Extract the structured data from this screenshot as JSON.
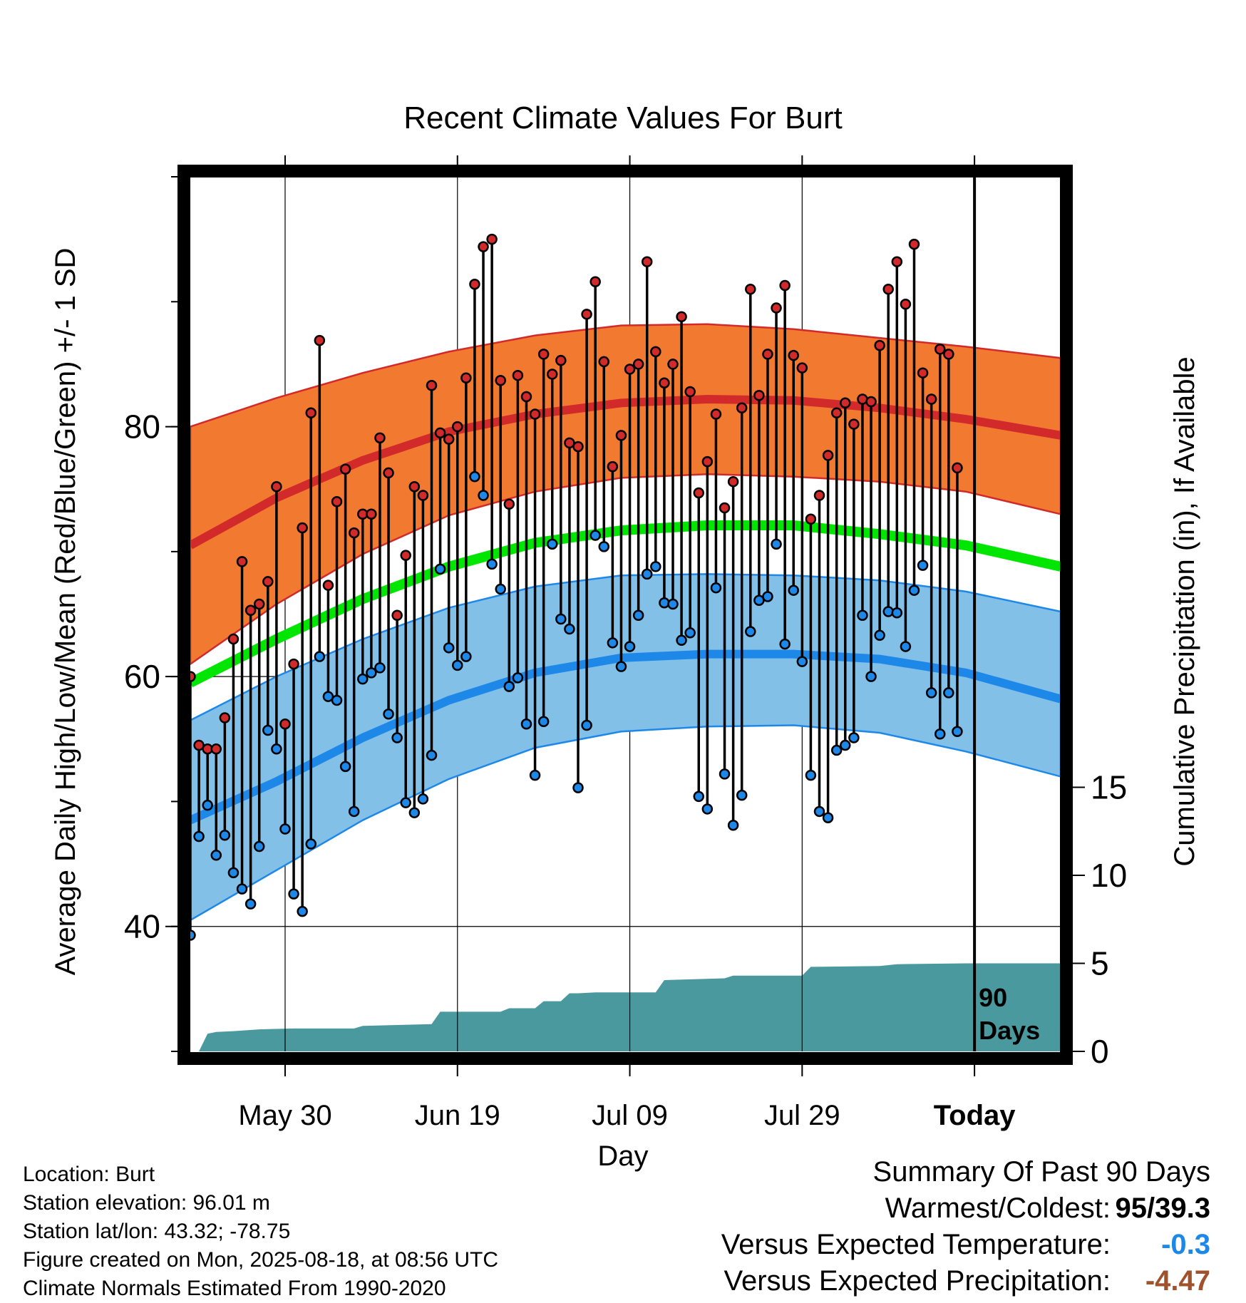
{
  "chart_data": {
    "type": "line",
    "title": "Recent Climate Values For Burt",
    "xlabel": "Day",
    "ylabel": "Average Daily High/Low/Mean (Red/Blue/Green) +/- 1 SD",
    "y2label": "Cumulative Precipitation (in), If Available",
    "ylim": [
      30,
      100
    ],
    "y_ticks": [
      40,
      60,
      80
    ],
    "y2_ticks": [
      0,
      5,
      10,
      15
    ],
    "x_tick_labels": [
      "May 30",
      "Jun 19",
      "Jul 09",
      "Jul 29",
      "Today"
    ],
    "x_tick_days": [
      11,
      31,
      51,
      71,
      91
    ],
    "xlim": [
      0,
      101
    ],
    "today_marker": "90\nDays",
    "grid": true,
    "colors": {
      "high": "#d22a2a",
      "high_band": "#f27a30",
      "low": "#1e88e8",
      "low_band": "#82c0e8",
      "mean": "#00e600",
      "precip": "#4a999f"
    },
    "normals": {
      "day": [
        0,
        10,
        20,
        30,
        40,
        50,
        60,
        70,
        80,
        90,
        101
      ],
      "high_mean": [
        70.5,
        74.3,
        77.3,
        79.6,
        81.0,
        81.9,
        82.2,
        82.1,
        81.5,
        80.6,
        79.3
      ],
      "high_upper": [
        80.0,
        82.3,
        84.3,
        86.0,
        87.3,
        88.1,
        88.2,
        87.8,
        87.1,
        86.4,
        85.5
      ],
      "high_lower": [
        61.0,
        65.8,
        69.8,
        72.9,
        74.8,
        75.9,
        76.2,
        76.0,
        75.6,
        74.8,
        73.0
      ],
      "low_mean": [
        48.5,
        51.6,
        55.1,
        58.1,
        60.3,
        61.5,
        61.8,
        61.8,
        61.4,
        60.3,
        58.2
      ],
      "low_upper": [
        56.5,
        60.0,
        63.0,
        65.5,
        67.2,
        68.1,
        68.2,
        68.1,
        67.7,
        66.8,
        65.2
      ],
      "low_lower": [
        40.5,
        44.5,
        48.5,
        51.8,
        54.3,
        55.6,
        56.0,
        56.1,
        55.5,
        54.0,
        52.0
      ],
      "mean": [
        59.5,
        63.0,
        66.2,
        68.8,
        70.7,
        71.7,
        72.1,
        72.1,
        71.4,
        70.5,
        68.8
      ]
    },
    "daily": {
      "day": [
        0,
        1,
        2,
        3,
        4,
        5,
        6,
        7,
        8,
        9,
        10,
        11,
        12,
        13,
        14,
        15,
        16,
        17,
        18,
        19,
        20,
        21,
        22,
        23,
        24,
        25,
        26,
        27,
        28,
        29,
        30,
        31,
        32,
        33,
        34,
        35,
        36,
        37,
        38,
        39,
        40,
        41,
        42,
        43,
        44,
        45,
        46,
        47,
        48,
        49,
        50,
        51,
        52,
        53,
        54,
        55,
        56,
        57,
        58,
        59,
        60,
        61,
        62,
        63,
        64,
        65,
        66,
        67,
        68,
        69,
        70,
        71,
        72,
        73,
        74,
        75,
        76,
        77,
        78,
        79,
        80,
        81,
        82,
        83,
        84,
        85,
        86,
        87,
        88,
        89,
        90
      ],
      "high": [
        60.0,
        54.5,
        54.2,
        54.2,
        56.7,
        63.0,
        69.2,
        65.3,
        65.8,
        67.6,
        75.2,
        56.2,
        61.0,
        71.9,
        81.1,
        86.9,
        67.3,
        74.0,
        76.6,
        71.5,
        73.0,
        73.0,
        79.1,
        76.3,
        64.9,
        69.7,
        75.2,
        74.5,
        83.3,
        79.5,
        79.0,
        80.0,
        83.9,
        91.4,
        94.4,
        95.0,
        83.7,
        73.8,
        84.1,
        82.4,
        81.0,
        85.8,
        84.2,
        85.3,
        78.7,
        78.4,
        89.0,
        91.6,
        85.2,
        76.8,
        79.3,
        84.6,
        85.0,
        93.2,
        86.0,
        83.5,
        85.0,
        88.8,
        82.8,
        74.7,
        77.2,
        81.0,
        73.5,
        75.6,
        81.5,
        91.0,
        82.5,
        85.8,
        89.5,
        91.3,
        85.7,
        84.7,
        72.6,
        74.5,
        77.7,
        81.1,
        81.9,
        80.2,
        82.2,
        82.0,
        86.5,
        91.0,
        93.2,
        89.8,
        94.6,
        84.3,
        82.2,
        86.2,
        85.8,
        76.7,
        null
      ],
      "low": [
        39.3,
        47.2,
        49.7,
        45.7,
        47.3,
        44.3,
        43.0,
        41.8,
        46.4,
        55.7,
        54.2,
        47.8,
        42.6,
        41.2,
        46.6,
        61.6,
        58.4,
        58.1,
        52.8,
        49.2,
        59.8,
        60.3,
        60.7,
        57.0,
        55.1,
        49.9,
        49.1,
        50.2,
        53.7,
        68.6,
        62.3,
        60.9,
        61.6,
        76.0,
        74.5,
        69.0,
        67.0,
        59.2,
        59.9,
        56.2,
        52.1,
        56.4,
        70.6,
        64.6,
        63.8,
        51.1,
        56.1,
        71.3,
        70.4,
        62.7,
        60.8,
        62.4,
        64.9,
        68.2,
        68.8,
        65.9,
        65.8,
        62.9,
        63.5,
        50.4,
        49.4,
        67.1,
        52.2,
        48.1,
        50.5,
        63.6,
        66.1,
        66.4,
        70.6,
        62.6,
        66.9,
        61.2,
        52.1,
        49.2,
        48.7,
        54.1,
        54.5,
        55.1,
        64.9,
        60.0,
        63.3,
        65.2,
        65.1,
        62.4,
        66.9,
        68.9,
        58.7,
        55.4,
        58.7,
        55.6,
        null
      ]
    },
    "precip_cumulative": {
      "day": [
        0,
        1,
        2,
        3,
        5,
        8,
        12,
        19,
        20,
        28,
        29,
        36,
        37,
        40,
        41,
        43,
        44,
        45,
        47,
        54,
        55,
        62,
        63,
        71,
        72,
        80,
        82,
        90,
        101
      ],
      "value": [
        0.0,
        0.0,
        1.0,
        1.1,
        1.15,
        1.25,
        1.3,
        1.3,
        1.45,
        1.55,
        2.25,
        2.25,
        2.45,
        2.45,
        2.85,
        2.85,
        3.3,
        3.3,
        3.35,
        3.35,
        4.05,
        4.15,
        4.3,
        4.3,
        4.8,
        4.85,
        4.95,
        5.0,
        5.0
      ]
    }
  },
  "footer": {
    "location": "Location: Burt",
    "elevation": "Station elevation: 96.01 m",
    "latlon": "Station lat/lon: 43.32; -78.75",
    "created": "Figure created on Mon, 2025-08-18, at 08:56 UTC",
    "normals_note": "Climate Normals Estimated From 1990-2020"
  },
  "summary": {
    "title": "Summary Of Past 90 Days",
    "warm_cold_label": "Warmest/Coldest:",
    "warm_cold_value": "95/39.3",
    "temp_label": "Versus Expected Temperature:",
    "temp_value": "-0.3",
    "temp_color": "#1e88e8",
    "precip_label": "Versus Expected Precipitation:",
    "precip_value": "-4.47",
    "precip_color": "#a0522d"
  }
}
